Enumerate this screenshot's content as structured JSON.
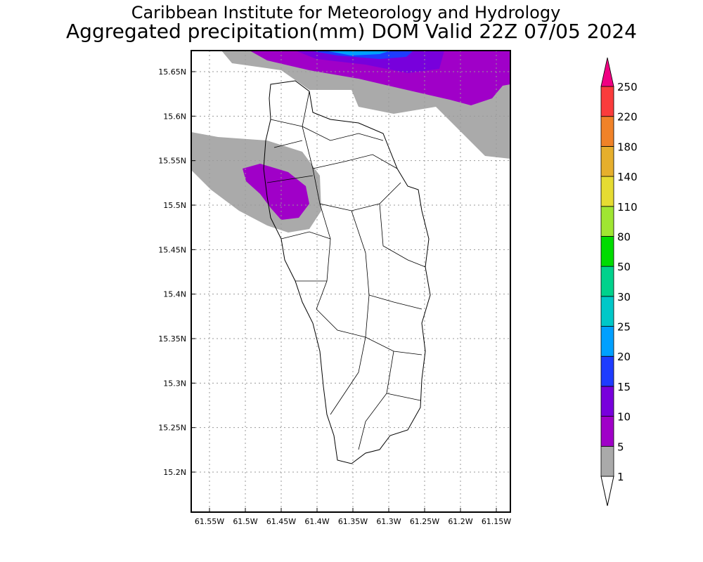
{
  "header": {
    "title_line1": "Caribbean Institute for Meteorology and Hydrology",
    "title_line2": "Aggregated precipitation(mm) DOM Valid 22Z 07/05 2024"
  },
  "map": {
    "lon_ticks": [
      "61.55W",
      "61.5W",
      "61.45W",
      "61.4W",
      "61.35W",
      "61.3W",
      "61.25W",
      "61.2W",
      "61.15W"
    ],
    "lon_values": [
      -61.55,
      -61.5,
      -61.45,
      -61.4,
      -61.35,
      -61.3,
      -61.25,
      -61.2,
      -61.15
    ],
    "lat_ticks": [
      "15.65N",
      "15.6N",
      "15.55N",
      "15.5N",
      "15.45N",
      "15.4N",
      "15.35N",
      "15.3N",
      "15.25N",
      "15.2N"
    ],
    "lat_values": [
      15.65,
      15.6,
      15.55,
      15.5,
      15.45,
      15.4,
      15.35,
      15.3,
      15.25,
      15.2
    ]
  },
  "colorbar": {
    "labels": [
      "1",
      "5",
      "10",
      "15",
      "20",
      "25",
      "30",
      "50",
      "80",
      "110",
      "140",
      "180",
      "220",
      "250"
    ],
    "colors": [
      "#aaaaaa",
      "#a000c8",
      "#7800dc",
      "#1e3cff",
      "#00a0ff",
      "#00c8c8",
      "#00d28c",
      "#00dc00",
      "#a0e632",
      "#e6dc32",
      "#e6af2d",
      "#f08228",
      "#fa3c3c",
      "#f00082"
    ]
  }
}
